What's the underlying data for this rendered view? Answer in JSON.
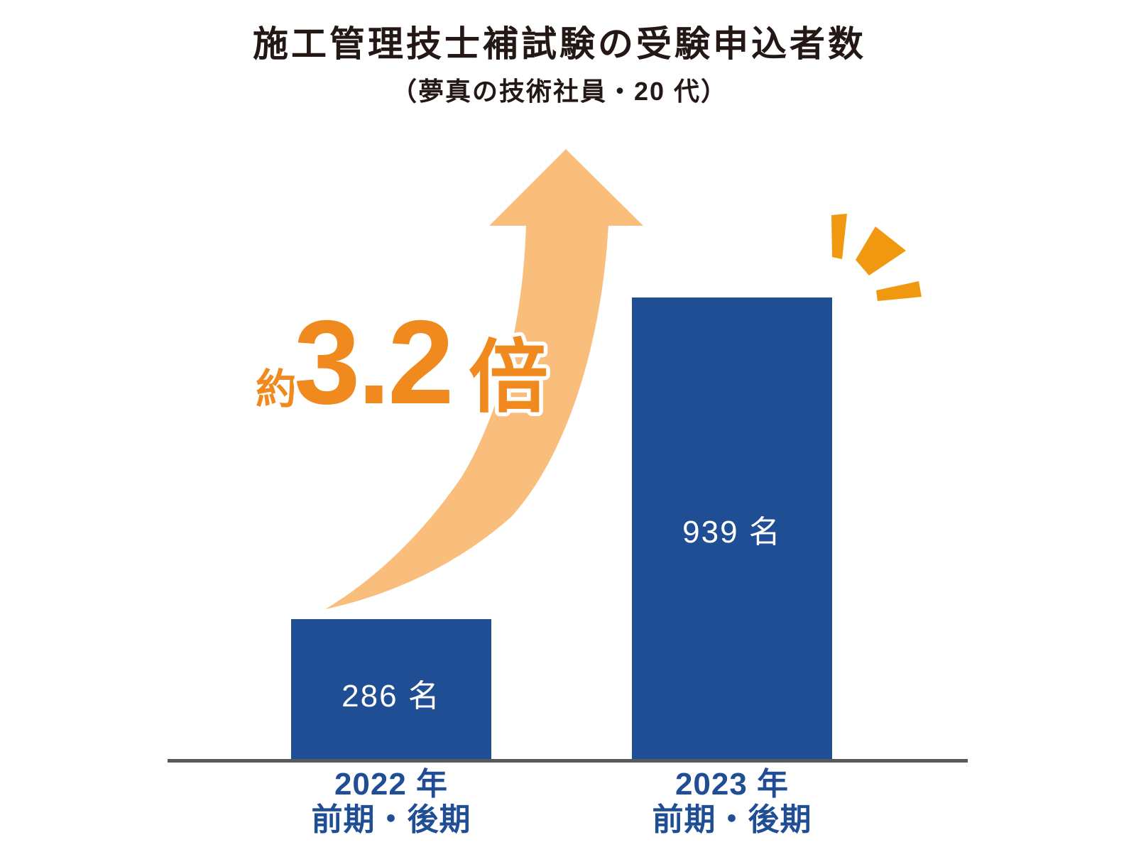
{
  "chart_data": {
    "type": "bar",
    "title": "施工管理技士補試験の受験申込者数",
    "subtitle": "（夢真の技術社員・20 代）",
    "categories": [
      "2022 年 前期・後期",
      "2023 年 前期・後期"
    ],
    "values": [
      286,
      939
    ],
    "unit": "名",
    "ylim": [
      0,
      1000
    ],
    "grid": false,
    "legend": false,
    "bars": [
      {
        "year_label": "2022 年",
        "term_label": "前期・後期",
        "value": 286,
        "value_label": "286 名"
      },
      {
        "year_label": "2023 年",
        "term_label": "前期・後期",
        "value": 939,
        "value_label": "939 名"
      }
    ],
    "annotation": {
      "prefix": "約",
      "multiplier": "3.2",
      "suffix": "倍"
    },
    "colors": {
      "title_text": "#231815",
      "bar_fill": "#1F4E94",
      "bar_value_text": "#FFFFFF",
      "axis_line": "#58595B",
      "axis_label": "#1F4E94",
      "arrow_fill": "#F9BE7C",
      "annotation_orange": "#F08A1E",
      "annotation_outline": "#FFFFFF",
      "spark_orange": "#F0980F"
    }
  },
  "decorations": {
    "arrow_icon": "curved-growth-arrow-up",
    "spark_icon": "emphasis-sparks"
  }
}
